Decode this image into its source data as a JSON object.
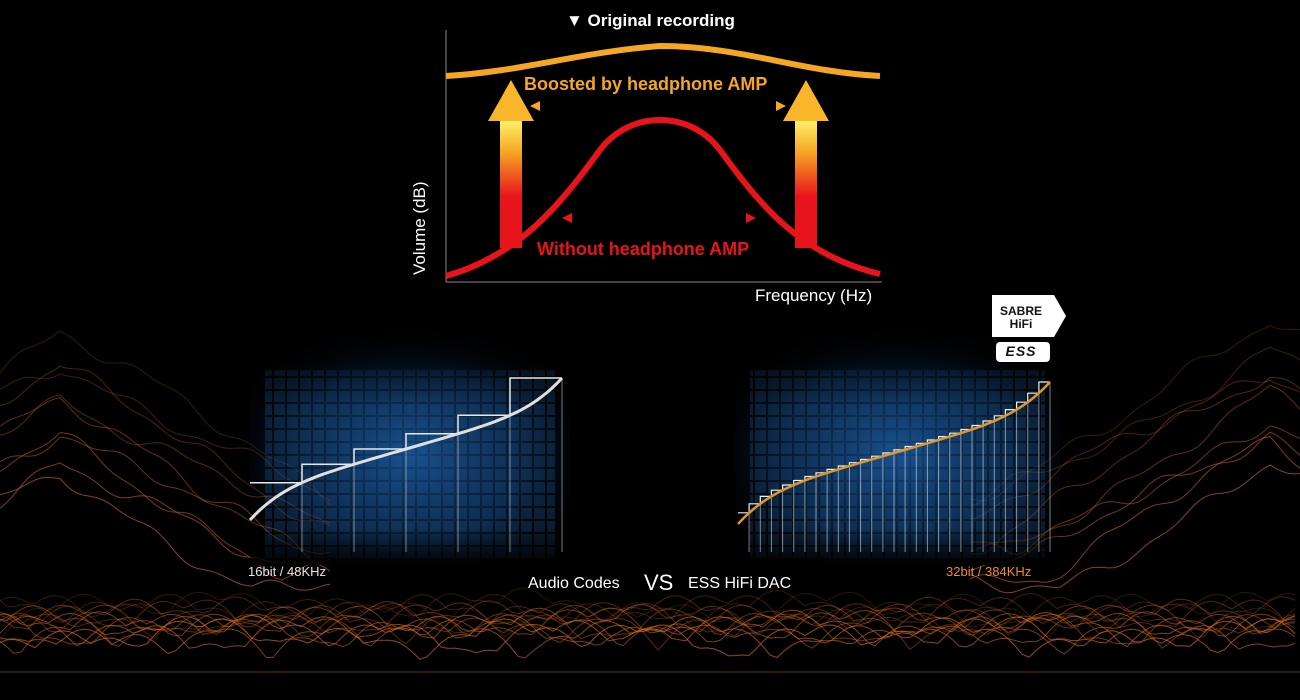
{
  "top_diagram": {
    "title": "▼ Original recording",
    "boost_label": "Boosted by headphone AMP",
    "without_label": "Without headphone AMP",
    "x_axis_label": "Frequency (Hz)",
    "y_axis_label": "Volume (dB)"
  },
  "comparison": {
    "left_resolution": "16bit / 48KHz",
    "right_resolution": "32bit / 384KHz",
    "left_name": "Audio Codes",
    "vs": "VS",
    "right_name": "ESS HiFi DAC"
  },
  "badge": {
    "line1": "SABRE",
    "line2": "HiFi",
    "line3": "ESS"
  },
  "colors": {
    "boost": "#f5a623",
    "without": "#e8141b",
    "hires": "#f08a2c",
    "grid_blue": "#1a5fa8",
    "terrain": "#d2691e"
  }
}
